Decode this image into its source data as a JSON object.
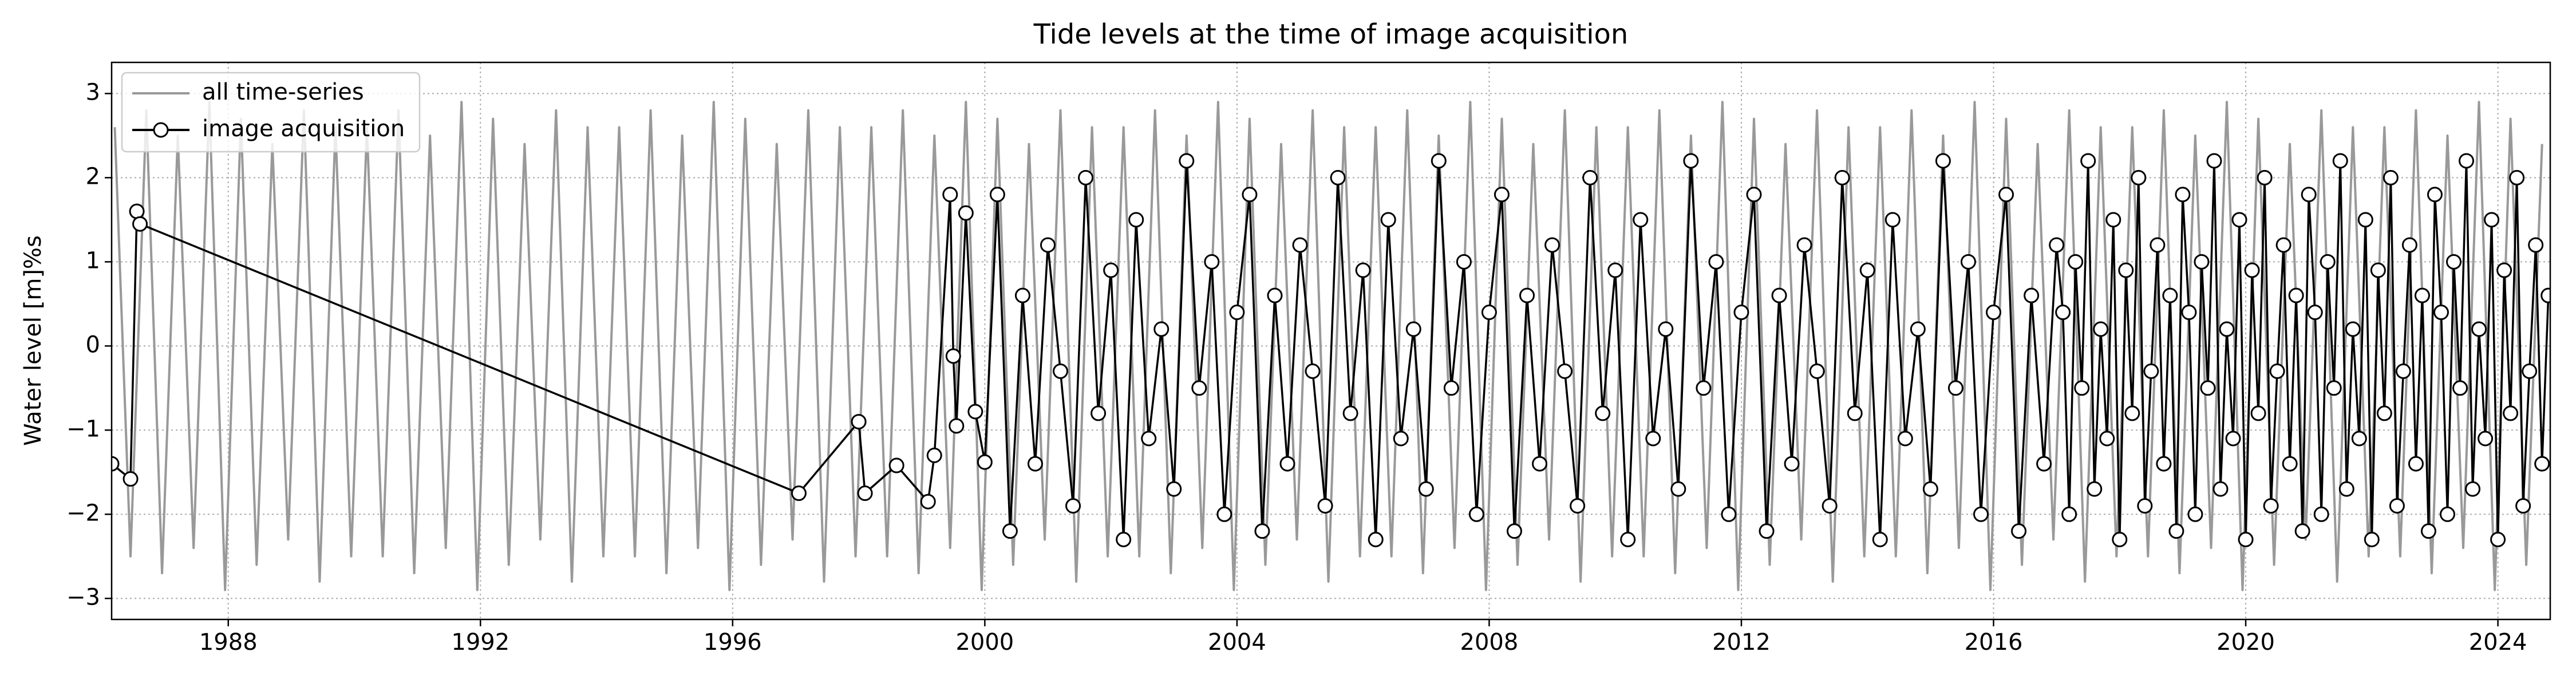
{
  "chart_data": {
    "type": "line",
    "title": "Tide levels at the time of image acquisition",
    "ylabel": "Water level [m]%s",
    "xlim": [
      1986.15,
      2024.83
    ],
    "ylim": [
      -3.25,
      3.37
    ],
    "xticks": [
      1988,
      1992,
      1996,
      2000,
      2004,
      2008,
      2012,
      2016,
      2020,
      2024
    ],
    "yticks": [
      {
        "value": -3,
        "label": "−3"
      },
      {
        "value": -2,
        "label": "−2"
      },
      {
        "value": -1,
        "label": "−1"
      },
      0,
      1,
      2,
      3
    ],
    "grid": true,
    "legend": "upper left",
    "series": [
      {
        "name": "all time-series",
        "color": "#999999",
        "marker": false,
        "x": [
          1986.2,
          1986.45,
          1986.7,
          1986.95,
          1987.2,
          1987.45,
          1987.7,
          1987.95,
          1988.2,
          1988.45,
          1988.7,
          1988.95,
          1989.2,
          1989.45,
          1989.7,
          1989.95,
          1990.2,
          1990.45,
          1990.7,
          1990.95,
          1991.2,
          1991.45,
          1991.7,
          1991.95,
          1992.2,
          1992.45,
          1992.7,
          1992.95,
          1993.2,
          1993.45,
          1993.7,
          1993.95,
          1994.2,
          1994.45,
          1994.7,
          1994.95,
          1995.2,
          1995.45,
          1995.7,
          1995.95,
          1996.2,
          1996.45,
          1996.7,
          1996.95,
          1997.2,
          1997.45,
          1997.7,
          1997.95,
          1998.2,
          1998.45,
          1998.7,
          1998.95,
          1999.2,
          1999.45,
          1999.7,
          1999.95,
          2000.2,
          2000.45,
          2000.7,
          2000.95,
          2001.2,
          2001.45,
          2001.7,
          2001.95,
          2002.2,
          2002.45,
          2002.7,
          2002.95,
          2003.2,
          2003.45,
          2003.7,
          2003.95,
          2004.2,
          2004.45,
          2004.7,
          2004.95,
          2005.2,
          2005.45,
          2005.7,
          2005.95,
          2006.2,
          2006.45,
          2006.7,
          2006.95,
          2007.2,
          2007.45,
          2007.7,
          2007.95,
          2008.2,
          2008.45,
          2008.7,
          2008.95,
          2009.2,
          2009.45,
          2009.7,
          2009.95,
          2010.2,
          2010.45,
          2010.7,
          2010.95,
          2011.2,
          2011.45,
          2011.7,
          2011.95,
          2012.2,
          2012.45,
          2012.7,
          2012.95,
          2013.2,
          2013.45,
          2013.7,
          2013.95,
          2014.2,
          2014.45,
          2014.7,
          2014.95,
          2015.2,
          2015.45,
          2015.7,
          2015.95,
          2016.2,
          2016.45,
          2016.7,
          2016.95,
          2017.2,
          2017.45,
          2017.7,
          2017.95,
          2018.2,
          2018.45,
          2018.7,
          2018.95,
          2019.2,
          2019.45,
          2019.7,
          2019.95,
          2020.2,
          2020.45,
          2020.7,
          2020.95,
          2021.2,
          2021.45,
          2021.7,
          2021.95,
          2022.2,
          2022.45,
          2022.7,
          2022.95,
          2023.2,
          2023.45,
          2023.7,
          2023.95,
          2024.2,
          2024.45,
          2024.7
        ],
        "values": [
          2.6,
          -2.5,
          2.8,
          -2.7,
          2.5,
          -2.4,
          2.9,
          -2.9,
          2.7,
          -2.6,
          2.4,
          -2.3,
          2.8,
          -2.8,
          2.6,
          -2.5,
          2.6,
          -2.5,
          2.8,
          -2.7,
          2.5,
          -2.4,
          2.9,
          -2.9,
          2.7,
          -2.6,
          2.4,
          -2.3,
          2.8,
          -2.8,
          2.6,
          -2.5,
          2.6,
          -2.5,
          2.8,
          -2.7,
          2.5,
          -2.4,
          2.9,
          -2.9,
          2.7,
          -2.6,
          2.4,
          -2.3,
          2.8,
          -2.8,
          2.6,
          -2.5,
          2.6,
          -2.5,
          2.8,
          -2.7,
          2.5,
          -2.4,
          2.9,
          -2.9,
          2.7,
          -2.6,
          2.4,
          -2.3,
          2.8,
          -2.8,
          2.6,
          -2.5,
          2.6,
          -2.5,
          2.8,
          -2.7,
          2.5,
          -2.4,
          2.9,
          -2.9,
          2.7,
          -2.6,
          2.4,
          -2.3,
          2.8,
          -2.8,
          2.6,
          -2.5,
          2.6,
          -2.5,
          2.8,
          -2.7,
          2.5,
          -2.4,
          2.9,
          -2.9,
          2.7,
          -2.6,
          2.4,
          -2.3,
          2.8,
          -2.8,
          2.6,
          -2.5,
          2.6,
          -2.5,
          2.8,
          -2.7,
          2.5,
          -2.4,
          2.9,
          -2.9,
          2.7,
          -2.6,
          2.4,
          -2.3,
          2.8,
          -2.8,
          2.6,
          -2.5,
          2.6,
          -2.5,
          2.8,
          -2.7,
          2.5,
          -2.4,
          2.9,
          -2.9,
          2.7,
          -2.6,
          2.4,
          -2.3,
          2.8,
          -2.8,
          2.6,
          -2.5,
          2.6,
          -2.5,
          2.8,
          -2.7,
          2.5,
          -2.4,
          2.9,
          -2.9,
          2.7,
          -2.6,
          2.4,
          -2.3,
          2.8,
          -2.8,
          2.6,
          -2.5,
          2.6,
          -2.5,
          2.8,
          -2.7,
          2.5,
          -2.4,
          2.9,
          -2.9,
          2.7,
          -2.6,
          2.4
        ]
      },
      {
        "name": "image acquisition",
        "color": "#000000",
        "marker": true,
        "marker_face": "#ffffff",
        "x": [
          1986.15,
          1986.45,
          1986.55,
          1986.6,
          1997.05,
          1998.0,
          1998.1,
          1998.6,
          1999.1,
          1999.2,
          1999.45,
          1999.5,
          1999.55,
          1999.7,
          1999.85,
          2000.0,
          2000.2,
          2000.4,
          2000.6,
          2000.8,
          2001,
          2001.2,
          2001.4,
          2001.6,
          2001.8,
          2002,
          2002.2,
          2002.4,
          2002.6,
          2002.8,
          2003,
          2003.2,
          2003.4,
          2003.6,
          2003.8,
          2004,
          2004.2,
          2004.4,
          2004.6,
          2004.8,
          2005,
          2005.2,
          2005.4,
          2005.6,
          2005.8,
          2006,
          2006.2,
          2006.4,
          2006.6,
          2006.8,
          2007,
          2007.2,
          2007.4,
          2007.6,
          2007.8,
          2008,
          2008.2,
          2008.4,
          2008.6,
          2008.8,
          2009,
          2009.2,
          2009.4,
          2009.6,
          2009.8,
          2010,
          2010.2,
          2010.4,
          2010.6,
          2010.8,
          2011,
          2011.2,
          2011.4,
          2011.6,
          2011.8,
          2012,
          2012.2,
          2012.4,
          2012.6,
          2012.8,
          2013,
          2013.2,
          2013.4,
          2013.6,
          2013.8,
          2014,
          2014.2,
          2014.4,
          2014.6,
          2014.8,
          2015,
          2015.2,
          2015.4,
          2015.6,
          2015.8,
          2016,
          2016.2,
          2016.4,
          2016.6,
          2016.8,
          2017,
          2017.1,
          2017.2,
          2017.3,
          2017.4,
          2017.5,
          2017.6,
          2017.7,
          2017.8,
          2017.9,
          2018.0,
          2018.1,
          2018.2,
          2018.3,
          2018.4,
          2018.5,
          2018.6,
          2018.7,
          2018.8,
          2018.9,
          2019.0,
          2019.1,
          2019.2,
          2019.3,
          2019.4,
          2019.5,
          2019.6,
          2019.7,
          2019.8,
          2019.9,
          2020.0,
          2020.1,
          2020.2,
          2020.3,
          2020.4,
          2020.5,
          2020.6,
          2020.7,
          2020.8,
          2020.9,
          2021.0,
          2021.1,
          2021.2,
          2021.3,
          2021.4,
          2021.5,
          2021.6,
          2021.7,
          2021.8,
          2021.9,
          2022.0,
          2022.1,
          2022.2,
          2022.3,
          2022.4,
          2022.5,
          2022.6,
          2022.7,
          2022.8,
          2022.9,
          2023.0,
          2023.1,
          2023.2,
          2023.3,
          2023.4,
          2023.5,
          2023.6,
          2023.7,
          2023.8,
          2023.9,
          2024.0,
          2024.1,
          2024.2,
          2024.3,
          2024.4,
          2024.5,
          2024.6,
          2024.7,
          2024.8
        ],
        "values": [
          -1.4,
          -1.58,
          1.6,
          1.45,
          -1.75,
          -0.9,
          -1.75,
          -1.42,
          -1.85,
          -1.3,
          1.8,
          -0.12,
          -0.95,
          1.58,
          -0.78,
          -1.38,
          1.8,
          -2.2,
          0.6,
          -1.4,
          1.2,
          -0.3,
          -1.9,
          2.0,
          -0.8,
          0.9,
          -2.3,
          1.5,
          -1.1,
          0.2,
          -1.7,
          2.2,
          -0.5,
          1.0,
          -2.0,
          0.4,
          1.8,
          -2.2,
          0.6,
          -1.4,
          1.2,
          -0.3,
          -1.9,
          2.0,
          -0.8,
          0.9,
          -2.3,
          1.5,
          -1.1,
          0.2,
          -1.7,
          2.2,
          -0.5,
          1.0,
          -2.0,
          0.4,
          1.8,
          -2.2,
          0.6,
          -1.4,
          1.2,
          -0.3,
          -1.9,
          2.0,
          -0.8,
          0.9,
          -2.3,
          1.5,
          -1.1,
          0.2,
          -1.7,
          2.2,
          -0.5,
          1.0,
          -2.0,
          0.4,
          1.8,
          -2.2,
          0.6,
          -1.4,
          1.2,
          -0.3,
          -1.9,
          2.0,
          -0.8,
          0.9,
          -2.3,
          1.5,
          -1.1,
          0.2,
          -1.7,
          2.2,
          -0.5,
          1.0,
          -2.0,
          0.4,
          1.8,
          -2.2,
          0.6,
          -1.4,
          1.2,
          0.4,
          -2.0,
          1.0,
          -0.5,
          2.2,
          -1.7,
          0.2,
          -1.1,
          1.5,
          -2.3,
          0.9,
          -0.8,
          2.0,
          -1.9,
          -0.3,
          1.2,
          -1.4,
          0.6,
          -2.2,
          1.8,
          0.4,
          -2.0,
          1.0,
          -0.5,
          2.2,
          -1.7,
          0.2,
          -1.1,
          1.5,
          -2.3,
          0.9,
          -0.8,
          2.0,
          -1.9,
          -0.3,
          1.2,
          -1.4,
          0.6,
          -2.2,
          1.8,
          0.4,
          -2.0,
          1.0,
          -0.5,
          2.2,
          -1.7,
          0.2,
          -1.1,
          1.5,
          -2.3,
          0.9,
          -0.8,
          2.0,
          -1.9,
          -0.3,
          1.2,
          -1.4,
          0.6,
          -2.2,
          1.8,
          0.4,
          -2.0,
          1.0,
          -0.5,
          2.2,
          -1.7,
          0.2,
          -1.1,
          1.5,
          -2.3,
          0.9,
          -0.8,
          2.0,
          -1.9,
          -0.3,
          1.2,
          -1.4,
          0.6
        ]
      }
    ]
  }
}
